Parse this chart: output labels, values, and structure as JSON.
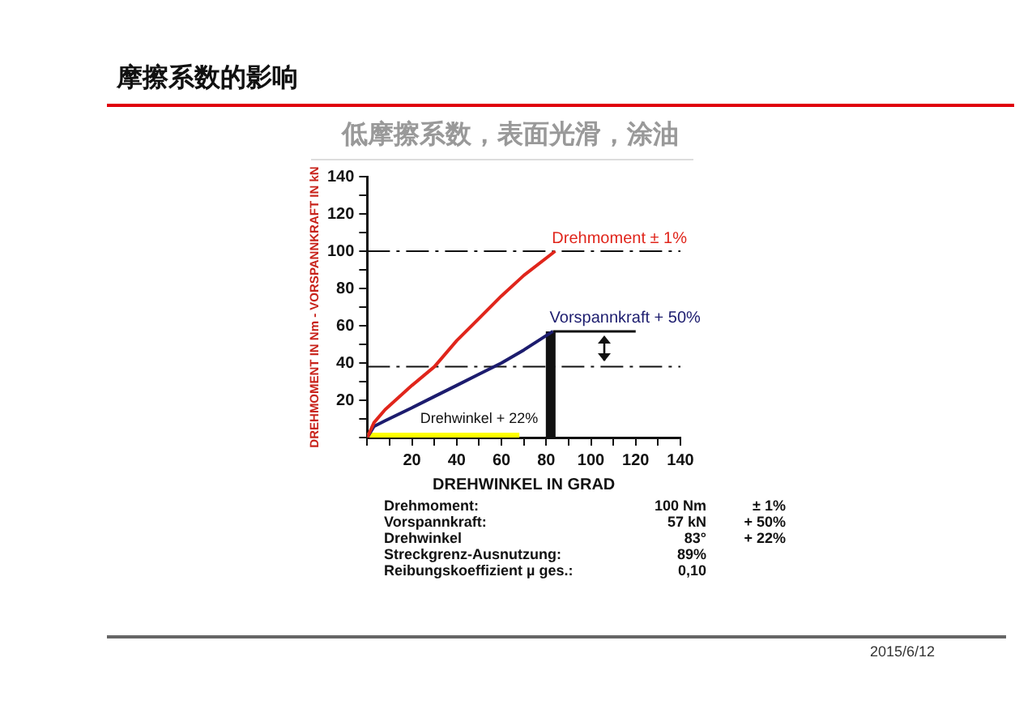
{
  "chart_data": {
    "type": "line",
    "title": "摩擦系数的影响",
    "subtitle": "低摩擦系数，表面光滑，涂油",
    "xlabel": "DREHWINKEL IN GRAD",
    "ylabel": "DREHMOMENT IN Nm - VORSPANNKRAFT IN kN",
    "xlim": [
      0,
      140
    ],
    "xticks": [
      {
        "value": 0,
        "label": null
      },
      {
        "value": 10,
        "label": null
      },
      20,
      {
        "value": 30,
        "label": null
      },
      40,
      {
        "value": 50,
        "label": null
      },
      60,
      {
        "value": 70,
        "label": null
      },
      80,
      {
        "value": 90,
        "label": null
      },
      100,
      {
        "value": 110,
        "label": null
      },
      120,
      {
        "value": 130,
        "label": null
      },
      140
    ],
    "ylim": [
      0,
      140
    ],
    "yticks": [
      {
        "value": 0,
        "label": null
      },
      {
        "value": 10,
        "label": null
      },
      20,
      {
        "value": 30,
        "label": null
      },
      40,
      {
        "value": 50,
        "label": null
      },
      60,
      {
        "value": 70,
        "label": null
      },
      80,
      {
        "value": 90,
        "label": null
      },
      100,
      {
        "value": 110,
        "label": null
      },
      120,
      {
        "value": 130,
        "label": null
      },
      140
    ],
    "grid": false,
    "legend": false,
    "marker": "none",
    "series": [
      {
        "name": "Drehmoment ± 1%",
        "color": "#e0251b",
        "x": [
          0,
          3,
          8,
          20,
          30,
          40,
          50,
          60,
          70,
          84
        ],
        "values": [
          0,
          8,
          15,
          28,
          38,
          52,
          64,
          76,
          87,
          100
        ]
      },
      {
        "name": "Vorspannkraft + 50%",
        "color": "#1c1c6e",
        "x": [
          0,
          3,
          8,
          20,
          30,
          40,
          50,
          60,
          70,
          83
        ],
        "values": [
          0,
          6,
          9,
          16,
          22,
          28,
          34,
          40,
          47,
          57
        ]
      },
      {
        "color": "#111111",
        "x": [
          82,
          82
        ],
        "values": [
          0,
          57
        ]
      },
      {
        "color": "#111111",
        "x": [
          83,
          120
        ],
        "values": [
          57,
          57
        ]
      },
      {
        "color": "#ffff00",
        "x": [
          0,
          68
        ],
        "values": [
          0,
          0
        ]
      }
    ],
    "ref_lines": [
      {
        "axis": "y",
        "value": 100,
        "color": "#111111",
        "line_style": "dashed"
      },
      {
        "axis": "y",
        "value": 38,
        "color": "#111111",
        "line_style": "dashed"
      }
    ],
    "annotations": [
      "Drehwinkel + 22%",
      "Drehmoment:\t100 Nm\t± 1%",
      "Vorspannkraft:\t57 kN\t+ 50%",
      "Drehwinkel\t83°\t+ 22%",
      "Streckgrenz-Ausnutzung:\t89%",
      "Reibungskoeffizient µ ges.:\t0,10",
      "2015/6/12"
    ]
  }
}
